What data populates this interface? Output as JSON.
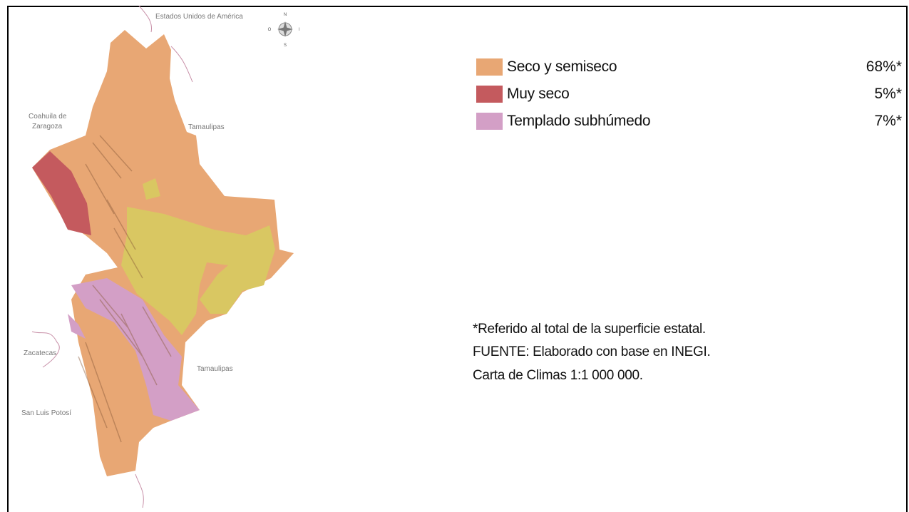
{
  "map": {
    "places": [
      "Estados Unidos de América",
      "Coahuila de",
      "Zaragoza",
      "Tamaulipas",
      "Tamaulipas",
      "Zacatecas",
      "San Luis Potosí"
    ],
    "compass": {
      "north": "N",
      "south": "S",
      "east": "E",
      "west": "O"
    }
  },
  "legend": [
    {
      "label": "Seco y semiseco",
      "value": "68%*"
    },
    {
      "label": "Muy seco",
      "value": "5%*"
    },
    {
      "label": "Templado subhúmedo",
      "value": "7%*"
    }
  ],
  "notes": [
    "*Referido al total de la superficie estatal.",
    "FUENTE: Elaborado con base en INEGI.",
    "Carta de Climas 1:1 000 000."
  ]
}
